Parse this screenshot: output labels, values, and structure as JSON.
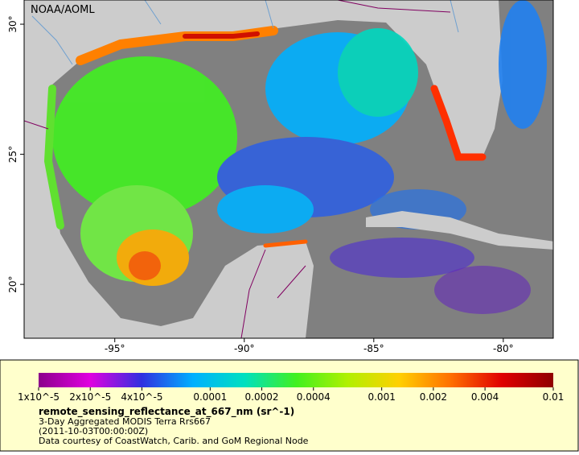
{
  "map": {
    "credit": "NOAA/AOML",
    "lon_range": [
      -98.5,
      -78.07
    ],
    "lat_range": [
      17.93,
      30.93
    ],
    "lon_ticks": [
      {
        "value": -95,
        "label": "-95°"
      },
      {
        "value": -90,
        "label": "-90°"
      },
      {
        "value": -85,
        "label": "-85°"
      },
      {
        "value": -80,
        "label": "-80°"
      }
    ],
    "lat_ticks": [
      {
        "value": 20,
        "label": "20°"
      },
      {
        "value": 25,
        "label": "25°"
      },
      {
        "value": 30,
        "label": "30°"
      }
    ]
  },
  "colorbar": {
    "scale": "log",
    "range": [
      1e-05,
      0.01
    ],
    "colors": [
      "#8b008b",
      "#e000e0",
      "#3030e0",
      "#00b0ff",
      "#00e0c0",
      "#40f020",
      "#b0f000",
      "#ffd000",
      "#ff7000",
      "#e00000",
      "#900000"
    ],
    "ticks": [
      {
        "value": 1e-05,
        "label": "1x10^-5"
      },
      {
        "value": 2e-05,
        "label": "2x10^-5"
      },
      {
        "value": 4e-05,
        "label": "4x10^-5"
      },
      0.0001,
      0.0002,
      0.0004,
      0.001,
      0.002,
      0.004,
      0.01
    ]
  },
  "legend": {
    "variable": "remote_sensing_reflectance_at_667_nm (sr^-1)",
    "dataset": "3-Day Aggregated MODIS Terra Rrs667",
    "time": "(2011-10-03T00:00:00Z)",
    "source": "Data courtesy of CoastWatch, Carib. and GoM Regional Node"
  }
}
